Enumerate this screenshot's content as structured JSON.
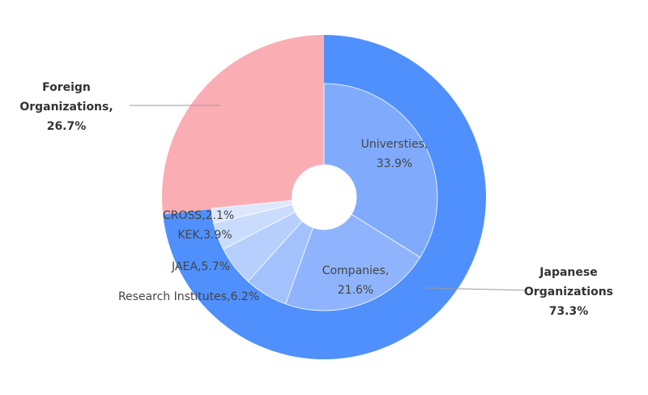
{
  "chart_data": {
    "type": "pie",
    "subtype": "nested-donut",
    "outer_ring": [
      {
        "name": "Japanese Organizations",
        "value": 73.3,
        "color": "#5090fd",
        "label_lines": [
          "Japanese",
          "Organizations",
          "73.3%"
        ]
      },
      {
        "name": "Foreign Organizations",
        "value": 26.7,
        "color": "#fbadb4",
        "label_lines": [
          "Foreign",
          "Organizations,",
          "26.7%"
        ]
      }
    ],
    "inner_ring": [
      {
        "name": "Universties",
        "value": 33.9,
        "color": "#80abfd",
        "label_lines": [
          "Universties,",
          "33.9%"
        ]
      },
      {
        "name": "Companies",
        "value": 21.6,
        "color": "#8fb4fd",
        "label_lines": [
          "Companies,",
          "21.6%"
        ]
      },
      {
        "name": "Research Institutes",
        "value": 6.2,
        "color": "#a3c2fd",
        "label_lines": [
          "Research Institutes,6.2%"
        ]
      },
      {
        "name": "JAEA",
        "value": 5.7,
        "color": "#b7cffd",
        "label_lines": [
          "JAEA,5.7%"
        ]
      },
      {
        "name": "KEK",
        "value": 3.9,
        "color": "#cadcfd",
        "label_lines": [
          "KEK,3.9%"
        ]
      },
      {
        "name": "CROSS",
        "value": 2.1,
        "color": "#dde8fe",
        "label_lines": [
          "CROSS,2.1%"
        ]
      }
    ],
    "legend": "none"
  }
}
